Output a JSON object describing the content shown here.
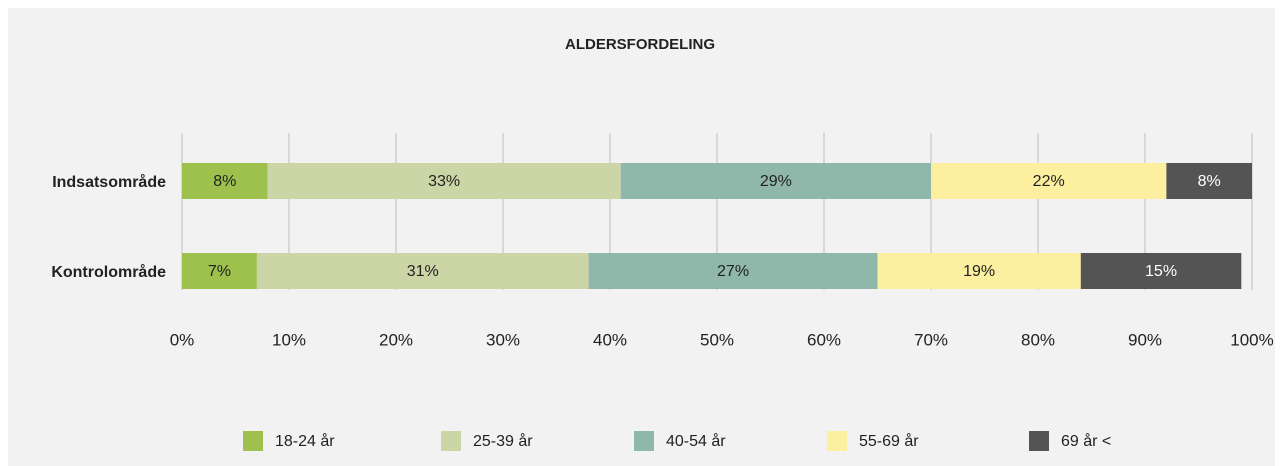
{
  "chart_data": {
    "type": "bar",
    "orientation": "horizontal",
    "stacked": true,
    "title": "ALDERSFORDELING",
    "categories": [
      "Indsatsområde",
      "Kontrolområde"
    ],
    "series": [
      {
        "name": "18-24 år",
        "color": "#9dc14c",
        "values": [
          8,
          7
        ],
        "value_labels": [
          "8%",
          "7%"
        ]
      },
      {
        "name": "25-39 år",
        "color": "#ccd5a6",
        "values": [
          33,
          31
        ],
        "value_labels": [
          "33%",
          "31%"
        ]
      },
      {
        "name": "40-54 år",
        "color": "#8fb8ab",
        "values": [
          29,
          27
        ],
        "value_labels": [
          "29%",
          "27%"
        ]
      },
      {
        "name": "55-69 år",
        "color": "#fcef9f",
        "values": [
          22,
          19
        ],
        "value_labels": [
          "22%",
          "19%"
        ]
      },
      {
        "name": "69 år <",
        "color": "#545454",
        "values": [
          8,
          15
        ],
        "value_labels": [
          "8%",
          "15%"
        ]
      }
    ],
    "xlim": [
      0,
      100
    ],
    "xticks": [
      {
        "value": 0,
        "label": "0%"
      },
      {
        "value": 10,
        "label": "10%"
      },
      {
        "value": 20,
        "label": "20%"
      },
      {
        "value": 30,
        "label": "30%"
      },
      {
        "value": 40,
        "label": "40%"
      },
      {
        "value": 50,
        "label": "50%"
      },
      {
        "value": 60,
        "label": "60%"
      },
      {
        "value": 70,
        "label": "70%"
      },
      {
        "value": 80,
        "label": "80%"
      },
      {
        "value": 90,
        "label": "90%"
      },
      {
        "value": 100,
        "label": "100%"
      }
    ],
    "grid": true,
    "legend": "bottom"
  }
}
